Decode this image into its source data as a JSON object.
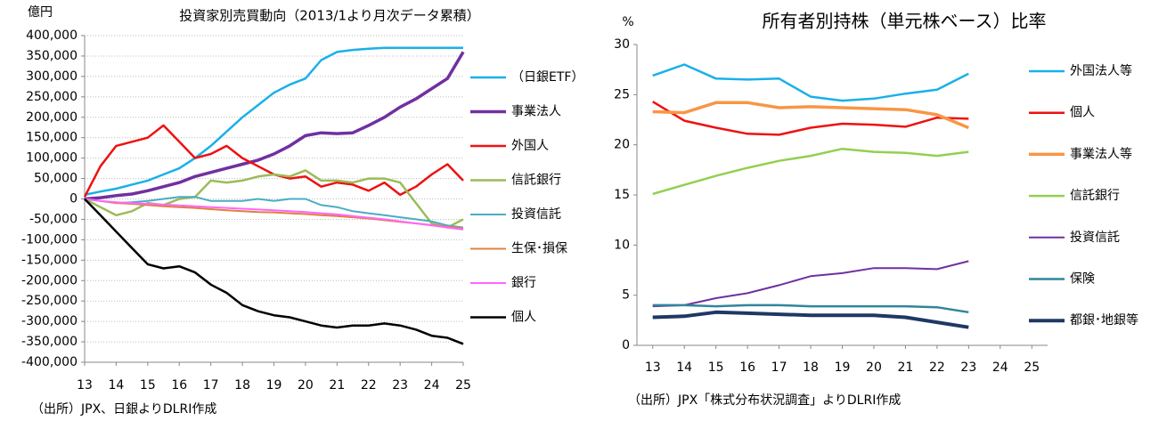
{
  "chart_data": [
    {
      "type": "line",
      "title": "投資家別売買動向（2013/1より月次データ累積）",
      "y_label": "億円",
      "note": "（出所）JPX、日銀よりDLRI作成",
      "grid": true,
      "legend": "right",
      "x": [
        13,
        13.5,
        14,
        14.5,
        15,
        15.5,
        16,
        16.5,
        17,
        17.5,
        18,
        18.5,
        19,
        19.5,
        20,
        20.5,
        21,
        21.5,
        22,
        22.5,
        23,
        23.5,
        24,
        24.5,
        25
      ],
      "xlim": [
        13,
        25
      ],
      "xticks": [
        13,
        14,
        15,
        16,
        17,
        18,
        19,
        20,
        21,
        22,
        23,
        24,
        25
      ],
      "ylim": [
        -400000,
        400000
      ],
      "yticks": [
        {
          "value": 400000,
          "label": "400,000"
        },
        {
          "value": 350000,
          "label": "350,000"
        },
        {
          "value": 300000,
          "label": "300,000"
        },
        {
          "value": 250000,
          "label": "250,000"
        },
        {
          "value": 200000,
          "label": "200,000"
        },
        {
          "value": 150000,
          "label": "150,000"
        },
        {
          "value": 100000,
          "label": "100,000"
        },
        {
          "value": 50000,
          "label": "50,000"
        },
        0,
        {
          "value": -50000,
          "label": "-50,000"
        },
        {
          "value": -100000,
          "label": "-100,000"
        },
        {
          "value": -150000,
          "label": "-150,000"
        },
        {
          "value": -200000,
          "label": "-200,000"
        },
        {
          "value": -250000,
          "label": "-250,000"
        },
        {
          "value": -300000,
          "label": "-300,000"
        },
        {
          "value": -350000,
          "label": "-350,000"
        },
        {
          "value": -400000,
          "label": "-400,000"
        }
      ],
      "series": [
        {
          "name": "（日銀ETF）",
          "color": "#1ab0e8",
          "line_width": 2.5,
          "values": [
            10000,
            18000,
            25000,
            35000,
            45000,
            60000,
            75000,
            100000,
            130000,
            165000,
            200000,
            230000,
            260000,
            280000,
            295000,
            340000,
            360000,
            365000,
            368000,
            370000,
            370000,
            370000,
            370000,
            370000,
            370000
          ]
        },
        {
          "name": "事業法人",
          "color": "#7030a0",
          "line_width": 3.5,
          "values": [
            0,
            3000,
            8000,
            12000,
            20000,
            30000,
            40000,
            55000,
            65000,
            75000,
            85000,
            95000,
            110000,
            130000,
            155000,
            162000,
            160000,
            162000,
            180000,
            200000,
            225000,
            245000,
            270000,
            295000,
            360000
          ]
        },
        {
          "name": "外国人",
          "color": "#ee1111",
          "line_width": 2.5,
          "values": [
            5000,
            80000,
            130000,
            140000,
            150000,
            180000,
            140000,
            100000,
            110000,
            130000,
            100000,
            80000,
            60000,
            50000,
            55000,
            30000,
            40000,
            35000,
            20000,
            40000,
            10000,
            30000,
            60000,
            85000,
            45000
          ]
        },
        {
          "name": "信託銀行",
          "color": "#9bbb59",
          "line_width": 2.5,
          "values": [
            0,
            -20000,
            -40000,
            -30000,
            -10000,
            -15000,
            0,
            5000,
            45000,
            40000,
            45000,
            55000,
            60000,
            55000,
            70000,
            45000,
            45000,
            40000,
            50000,
            50000,
            40000,
            -10000,
            -60000,
            -70000,
            -50000
          ]
        },
        {
          "name": "投資信託",
          "color": "#4bacc6",
          "line_width": 2,
          "values": [
            0,
            -5000,
            -10000,
            -8000,
            -5000,
            0,
            5000,
            5000,
            -5000,
            -5000,
            -5000,
            0,
            -5000,
            0,
            0,
            -15000,
            -20000,
            -30000,
            -35000,
            -40000,
            -45000,
            -50000,
            -55000,
            -65000,
            -70000
          ]
        },
        {
          "name": "生保･損保",
          "color": "#e0803c",
          "line_width": 2,
          "values": [
            0,
            -5000,
            -10000,
            -12000,
            -15000,
            -18000,
            -20000,
            -22000,
            -25000,
            -28000,
            -30000,
            -32000,
            -33000,
            -35000,
            -37000,
            -40000,
            -42000,
            -45000,
            -48000,
            -52000,
            -56000,
            -60000,
            -64000,
            -68000,
            -72000
          ]
        },
        {
          "name": "銀行",
          "color": "#ff66ff",
          "line_width": 2,
          "values": [
            0,
            -5000,
            -8000,
            -10000,
            -12000,
            -14000,
            -16000,
            -18000,
            -20000,
            -22000,
            -24000,
            -26000,
            -28000,
            -30000,
            -32000,
            -35000,
            -38000,
            -42000,
            -46000,
            -50000,
            -55000,
            -60000,
            -65000,
            -70000,
            -75000
          ]
        },
        {
          "name": "個人",
          "color": "#000000",
          "line_width": 2.5,
          "values": [
            0,
            -40000,
            -80000,
            -120000,
            -160000,
            -170000,
            -165000,
            -180000,
            -210000,
            -230000,
            -260000,
            -275000,
            -285000,
            -290000,
            -300000,
            -310000,
            -315000,
            -310000,
            -310000,
            -305000,
            -310000,
            -320000,
            -335000,
            -340000,
            -355000
          ]
        }
      ]
    },
    {
      "type": "line",
      "title": "所有者別持株（単元株ベース）比率",
      "y_label": "%",
      "note": "（出所）JPX「株式分布状況調査」よりDLRI作成",
      "grid": false,
      "legend": "right",
      "x": [
        13,
        14,
        15,
        16,
        17,
        18,
        19,
        20,
        21,
        22,
        23
      ],
      "xlim": [
        12.5,
        25.5
      ],
      "xticks": [
        13,
        14,
        15,
        16,
        17,
        18,
        19,
        20,
        21,
        22,
        23,
        24,
        25
      ],
      "ylim": [
        0,
        30
      ],
      "yticks": [
        0,
        5,
        10,
        15,
        20,
        25,
        30
      ],
      "series": [
        {
          "name": "外国法人等",
          "color": "#1ab0e8",
          "line_width": 2.5,
          "values": [
            26.9,
            28.0,
            26.6,
            26.5,
            26.6,
            24.8,
            24.4,
            24.6,
            25.1,
            25.5,
            27.1
          ]
        },
        {
          "name": "個人",
          "color": "#ee1111",
          "line_width": 2.5,
          "values": [
            24.3,
            22.4,
            21.7,
            21.1,
            21.0,
            21.7,
            22.1,
            22.0,
            21.8,
            22.7,
            22.6
          ]
        },
        {
          "name": "事業法人等",
          "color": "#f79646",
          "line_width": 3.5,
          "values": [
            23.3,
            23.2,
            24.2,
            24.2,
            23.7,
            23.8,
            23.7,
            23.6,
            23.5,
            23.0,
            21.7
          ]
        },
        {
          "name": "信託銀行",
          "color": "#92d050",
          "line_width": 2.5,
          "values": [
            15.1,
            16.0,
            16.9,
            17.7,
            18.4,
            18.9,
            19.6,
            19.3,
            19.2,
            18.9,
            19.3
          ]
        },
        {
          "name": "投資信託",
          "color": "#7030a0",
          "line_width": 2,
          "values": [
            3.9,
            4.0,
            4.7,
            5.2,
            6.0,
            6.9,
            7.2,
            7.7,
            7.7,
            7.6,
            8.4
          ]
        },
        {
          "name": "保険",
          "color": "#31859c",
          "line_width": 2.5,
          "values": [
            4.0,
            4.0,
            3.9,
            4.0,
            4.0,
            3.9,
            3.9,
            3.9,
            3.9,
            3.8,
            3.3
          ]
        },
        {
          "name": "都銀･地銀等",
          "color": "#1f3864",
          "line_width": 4,
          "values": [
            2.8,
            2.9,
            3.3,
            3.2,
            3.1,
            3.0,
            3.0,
            3.0,
            2.8,
            2.3,
            1.8
          ]
        }
      ]
    }
  ]
}
